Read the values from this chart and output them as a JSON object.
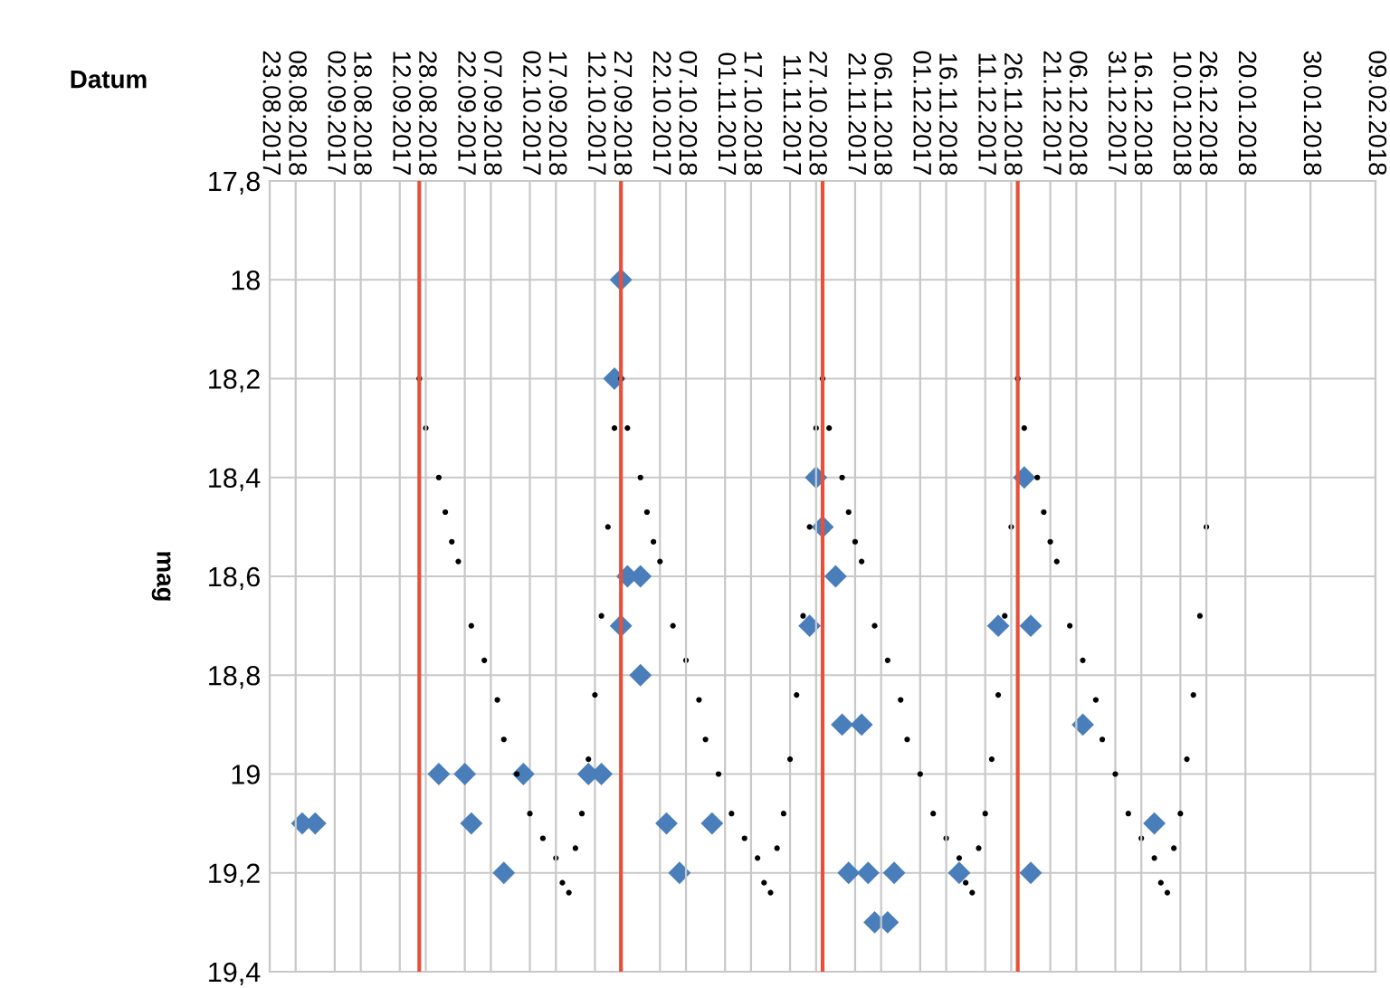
{
  "chart_data": {
    "type": "scatter",
    "xlabel": "Datum",
    "ylabel": "mag",
    "xlim": [
      "2017-08-23",
      "2018-02-09"
    ],
    "xticks": [
      {
        "value": "2017-08-23",
        "label": "23.08.2017"
      },
      {
        "value": "2017-09-02",
        "label": "02.09.2017"
      },
      {
        "value": "2017-09-12",
        "label": "12.09.2017"
      },
      {
        "value": "2017-09-22",
        "label": "22.09.2017"
      },
      {
        "value": "2017-10-02",
        "label": "02.10.2017"
      },
      {
        "value": "2017-10-12",
        "label": "12.10.2017"
      },
      {
        "value": "2017-10-22",
        "label": "22.10.2017"
      },
      {
        "value": "2017-11-01",
        "label": "01.11.2017"
      },
      {
        "value": "2017-11-11",
        "label": "11.11.2017"
      },
      {
        "value": "2017-11-21",
        "label": "21.11.2017"
      },
      {
        "value": "2017-12-01",
        "label": "01.12.2017"
      },
      {
        "value": "2017-12-11",
        "label": "11.12.2017"
      },
      {
        "value": "2017-12-21",
        "label": "21.12.2017"
      },
      {
        "value": "2017-12-31",
        "label": "31.12.2017"
      },
      {
        "value": "2018-01-10",
        "label": "10.01.2018"
      },
      {
        "value": "2018-01-20",
        "label": "20.01.2018"
      },
      {
        "value": "2018-01-30",
        "label": "30.01.2018"
      },
      {
        "value": "2018-02-09",
        "label": "09.02.2018"
      }
    ],
    "x2lim": [
      "2018-08-04",
      "2019-01-21"
    ],
    "x2ticks": [
      {
        "value": "2018-08-08",
        "label": "08.08.2018"
      },
      {
        "value": "2018-08-18",
        "label": "18.08.2018"
      },
      {
        "value": "2018-08-28",
        "label": "28.08.2018"
      },
      {
        "value": "2018-09-07",
        "label": "07.09.2018"
      },
      {
        "value": "2018-09-17",
        "label": "17.09.2018"
      },
      {
        "value": "2018-09-27",
        "label": "27.09.2018"
      },
      {
        "value": "2018-10-07",
        "label": "07.10.2018"
      },
      {
        "value": "2018-10-17",
        "label": "17.10.2018"
      },
      {
        "value": "2018-10-27",
        "label": "27.10.2018"
      },
      {
        "value": "2018-11-06",
        "label": "06.11.2018"
      },
      {
        "value": "2018-11-16",
        "label": "16.11.2018"
      },
      {
        "value": "2018-11-26",
        "label": "26.11.2018"
      },
      {
        "value": "2018-12-06",
        "label": "06.12.2018"
      },
      {
        "value": "2018-12-16",
        "label": "16.12.2018"
      },
      {
        "value": "2018-12-26",
        "label": "26.12.2018"
      }
    ],
    "ylim": [
      19.4,
      17.8
    ],
    "yticks": [
      {
        "value": 17.8,
        "label": "17,8"
      },
      {
        "value": 18.0,
        "label": "18"
      },
      {
        "value": 18.2,
        "label": "18,2"
      },
      {
        "value": 18.4,
        "label": "18,4"
      },
      {
        "value": 18.6,
        "label": "18,6"
      },
      {
        "value": 18.8,
        "label": "18,8"
      },
      {
        "value": 19.0,
        "label": "19"
      },
      {
        "value": 19.2,
        "label": "19,2"
      },
      {
        "value": 19.4,
        "label": "19,4"
      }
    ],
    "grid": true,
    "ref_lines": [
      {
        "axis": "x2",
        "value": "2018-08-27",
        "color": "#e8503a"
      },
      {
        "axis": "x2",
        "value": "2018-09-27",
        "color": "#e8503a"
      },
      {
        "axis": "x2",
        "value": "2018-10-28",
        "color": "#e8503a"
      },
      {
        "axis": "x2",
        "value": "2018-11-27",
        "color": "#e8503a"
      }
    ],
    "series": [
      {
        "marker": "circle",
        "color": "#000000",
        "x": [
          "2017-09-15",
          "2017-09-16",
          "2017-09-18",
          "2017-09-19",
          "2017-09-20",
          "2017-09-21",
          "2017-09-23",
          "2017-09-25",
          "2017-09-27",
          "2017-09-28",
          "2017-09-30",
          "2017-10-02",
          "2017-10-04",
          "2017-10-06",
          "2017-10-07",
          "2017-10-08",
          "2017-10-09",
          "2017-10-10",
          "2017-10-11",
          "2017-10-12",
          "2017-10-13",
          "2017-10-14",
          "2017-10-15",
          "2017-10-16",
          "2017-10-17",
          "2017-10-19",
          "2017-10-20",
          "2017-10-21",
          "2017-10-22",
          "2017-10-24",
          "2017-10-26",
          "2017-10-28",
          "2017-10-29",
          "2017-10-31",
          "2017-11-02",
          "2017-11-04",
          "2017-11-06",
          "2017-11-07",
          "2017-11-08",
          "2017-11-09",
          "2017-11-10",
          "2017-11-11",
          "2017-11-12",
          "2017-11-13",
          "2017-11-14",
          "2017-11-15",
          "2017-11-16",
          "2017-11-17",
          "2017-11-19",
          "2017-11-20",
          "2017-11-21",
          "2017-11-22",
          "2017-11-24",
          "2017-11-26",
          "2017-11-28",
          "2017-11-29",
          "2017-12-01",
          "2017-12-03",
          "2017-12-05",
          "2017-12-07",
          "2017-12-08",
          "2017-12-09",
          "2017-12-10",
          "2017-12-11",
          "2017-12-12",
          "2017-12-13",
          "2017-12-14",
          "2017-12-15",
          "2017-12-16",
          "2017-12-17",
          "2017-12-19",
          "2017-12-20",
          "2017-12-21",
          "2017-12-22",
          "2017-12-24",
          "2017-12-26",
          "2017-12-28",
          "2017-12-29",
          "2017-12-31",
          "2018-01-02",
          "2018-01-04",
          "2018-01-06",
          "2018-01-07",
          "2018-01-08",
          "2018-01-09",
          "2018-01-10",
          "2018-01-11",
          "2018-01-12",
          "2018-01-13",
          "2018-01-14"
        ],
        "values": [
          18.2,
          18.3,
          18.4,
          18.47,
          18.53,
          18.57,
          18.7,
          18.77,
          18.85,
          18.93,
          19.0,
          19.08,
          19.13,
          19.17,
          19.22,
          19.24,
          19.15,
          19.08,
          18.97,
          18.84,
          18.68,
          18.5,
          18.3,
          18.2,
          18.3,
          18.4,
          18.47,
          18.53,
          18.57,
          18.7,
          18.77,
          18.85,
          18.93,
          19.0,
          19.08,
          19.13,
          19.17,
          19.22,
          19.24,
          19.15,
          19.08,
          18.97,
          18.84,
          18.68,
          18.5,
          18.3,
          18.2,
          18.3,
          18.4,
          18.47,
          18.53,
          18.57,
          18.7,
          18.77,
          18.85,
          18.93,
          19.0,
          19.08,
          19.13,
          19.17,
          19.22,
          19.24,
          19.15,
          19.08,
          18.97,
          18.84,
          18.68,
          18.5,
          18.2,
          18.3,
          18.4,
          18.47,
          18.53,
          18.57,
          18.7,
          18.77,
          18.85,
          18.93,
          19.0,
          19.08,
          19.13,
          19.17,
          19.22,
          19.24,
          19.15,
          19.08,
          18.97,
          18.84,
          18.68,
          18.5
        ]
      },
      {
        "marker": "diamond",
        "color": "#4a7ebb",
        "x": [
          "2017-08-28",
          "2017-08-30",
          "2017-09-18",
          "2017-09-22",
          "2017-09-23",
          "2017-09-28",
          "2017-10-01",
          "2017-10-11",
          "2017-10-13",
          "2017-10-16",
          "2017-10-15",
          "2017-10-17",
          "2017-10-19",
          "2017-10-16",
          "2017-10-19",
          "2017-10-23",
          "2017-10-25",
          "2017-10-30",
          "2017-11-15",
          "2017-11-16",
          "2017-11-14",
          "2017-11-18",
          "2017-11-19",
          "2017-11-22",
          "2017-11-20",
          "2017-11-23",
          "2017-11-27",
          "2017-11-24",
          "2017-11-26",
          "2017-12-07",
          "2017-12-13",
          "2017-12-17",
          "2017-12-18",
          "2017-12-18",
          "2017-12-26",
          "2018-01-06"
        ],
        "values": [
          19.1,
          19.1,
          19.0,
          19.0,
          19.1,
          19.2,
          19.0,
          19.0,
          19.0,
          18.0,
          18.2,
          18.6,
          18.6,
          18.7,
          18.8,
          19.1,
          19.2,
          19.1,
          18.4,
          18.5,
          18.7,
          18.6,
          18.9,
          18.9,
          19.2,
          19.2,
          19.2,
          19.3,
          19.3,
          19.2,
          18.7,
          18.4,
          18.7,
          19.2,
          18.9,
          19.1
        ]
      }
    ]
  }
}
